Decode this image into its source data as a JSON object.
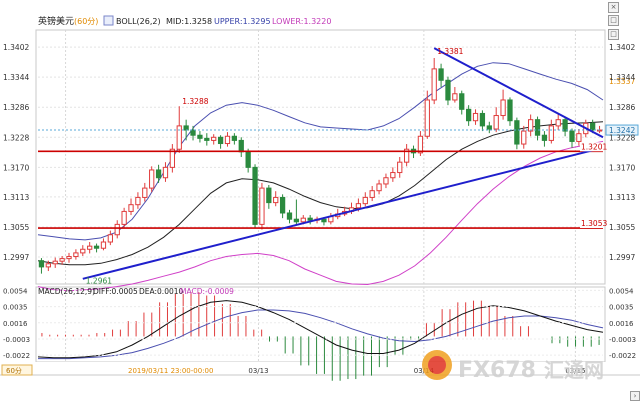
{
  "header": {
    "symbol": "英镑美元",
    "period": "(60分)",
    "boll_label": "BOLL(26,2)",
    "mid": "MID:1.3258",
    "upper": "UPPER:1.3295",
    "lower": "LOWER:1.3220"
  },
  "macd_header": {
    "label": "MACD(26,12,9)",
    "diff": "DIFF:0.0005",
    "dea": "DEA:0.0010",
    "macd": "MACD:-0.0009"
  },
  "footer": {
    "period_badge": "60分",
    "cursor_time": "2019/03/11 23:00-00:00",
    "watermark_text": "FX678",
    "watermark_cn": "汇通网"
  },
  "colors": {
    "up": "#e03c3c",
    "down": "#2b8a3e",
    "boll_upper": "#4a4fb0",
    "boll_mid": "#222222",
    "boll_lower": "#d040c8",
    "trendline": "#1f1fcc",
    "hline": "#cc0000"
  },
  "chart_data": [
    {
      "type": "candlestick",
      "title": "英镑美元 60分",
      "y_ticks": [
        "1.3402",
        "1.3344",
        "1.3286",
        "1.3228",
        "1.3170",
        "1.3113",
        "1.3055",
        "1.2997"
      ],
      "ylim": [
        1.2945,
        1.3435
      ],
      "x_labels": [
        "03/13",
        "03/14",
        "03/15"
      ],
      "current_price": "1.3242",
      "price_labels": [
        "1.3381",
        "1.3288",
        "1.2961",
        "1.3337",
        "1.3201",
        "1.3053"
      ],
      "horizontal_levels": [
        1.3201,
        1.3053
      ],
      "candles": [
        [
          1.299,
          1.2978,
          1.2995,
          1.2965
        ],
        [
          1.2978,
          1.2984,
          1.299,
          1.297
        ],
        [
          1.2984,
          1.2989,
          1.2996,
          1.2976
        ],
        [
          1.2989,
          1.2994,
          1.2999,
          1.2982
        ],
        [
          1.2994,
          1.2998,
          1.3005,
          1.2986
        ],
        [
          1.2998,
          1.3005,
          1.3012,
          1.2992
        ],
        [
          1.3005,
          1.3012,
          1.302,
          1.2999
        ],
        [
          1.3012,
          1.3018,
          1.3026,
          1.3004
        ],
        [
          1.3018,
          1.3014,
          1.3023,
          1.3006
        ],
        [
          1.3014,
          1.3026,
          1.3033,
          1.301
        ],
        [
          1.3026,
          1.304,
          1.3048,
          1.302
        ],
        [
          1.304,
          1.306,
          1.3068,
          1.3033
        ],
        [
          1.306,
          1.3085,
          1.3092,
          1.3052
        ],
        [
          1.3085,
          1.3098,
          1.311,
          1.3078
        ],
        [
          1.3098,
          1.3112,
          1.3122,
          1.309
        ],
        [
          1.3112,
          1.313,
          1.314,
          1.3104
        ],
        [
          1.313,
          1.3165,
          1.3172,
          1.3122
        ],
        [
          1.3165,
          1.315,
          1.3175,
          1.314
        ],
        [
          1.315,
          1.317,
          1.318,
          1.3142
        ],
        [
          1.317,
          1.3205,
          1.3215,
          1.316
        ],
        [
          1.3205,
          1.325,
          1.3288,
          1.3198
        ],
        [
          1.325,
          1.3242,
          1.3262,
          1.3222
        ],
        [
          1.3242,
          1.3232,
          1.325,
          1.3222
        ],
        [
          1.3232,
          1.3226,
          1.324,
          1.3218
        ],
        [
          1.3226,
          1.3222,
          1.3236,
          1.3212
        ],
        [
          1.3222,
          1.3228,
          1.3234,
          1.3214
        ],
        [
          1.3228,
          1.3216,
          1.3232,
          1.3206
        ],
        [
          1.3216,
          1.323,
          1.3238,
          1.321
        ],
        [
          1.323,
          1.3222,
          1.3236,
          1.3214
        ],
        [
          1.3222,
          1.32,
          1.3228,
          1.319
        ],
        [
          1.32,
          1.317,
          1.3206,
          1.316
        ],
        [
          1.317,
          1.306,
          1.3176,
          1.3052
        ],
        [
          1.306,
          1.313,
          1.314,
          1.305
        ],
        [
          1.313,
          1.3102,
          1.3136,
          1.309
        ],
        [
          1.3102,
          1.3112,
          1.3124,
          1.3095
        ],
        [
          1.3112,
          1.3082,
          1.3118,
          1.3072
        ],
        [
          1.3082,
          1.307,
          1.3088,
          1.3062
        ],
        [
          1.307,
          1.3065,
          1.3108,
          1.3058
        ],
        [
          1.3065,
          1.3072,
          1.3078,
          1.306
        ],
        [
          1.3072,
          1.3068,
          1.3078,
          1.306
        ],
        [
          1.3068,
          1.307,
          1.3075,
          1.3062
        ],
        [
          1.307,
          1.3065,
          1.3074,
          1.3058
        ],
        [
          1.3065,
          1.3075,
          1.3082,
          1.306
        ],
        [
          1.3075,
          1.308,
          1.309,
          1.307
        ],
        [
          1.308,
          1.3085,
          1.3094,
          1.3076
        ],
        [
          1.3085,
          1.3092,
          1.3102,
          1.308
        ],
        [
          1.3092,
          1.31,
          1.311,
          1.3085
        ],
        [
          1.31,
          1.3112,
          1.3122,
          1.3095
        ],
        [
          1.3112,
          1.3125,
          1.3134,
          1.3105
        ],
        [
          1.3125,
          1.3138,
          1.3146,
          1.3118
        ],
        [
          1.3138,
          1.315,
          1.3158,
          1.313
        ],
        [
          1.315,
          1.316,
          1.317,
          1.3142
        ],
        [
          1.316,
          1.318,
          1.319,
          1.315
        ],
        [
          1.318,
          1.3205,
          1.3215,
          1.3172
        ],
        [
          1.3205,
          1.3198,
          1.3212,
          1.3188
        ],
        [
          1.3198,
          1.323,
          1.324,
          1.3192
        ],
        [
          1.323,
          1.33,
          1.3318,
          1.3225
        ],
        [
          1.33,
          1.336,
          1.3381,
          1.3292
        ],
        [
          1.336,
          1.3338,
          1.337,
          1.3325
        ],
        [
          1.3338,
          1.33,
          1.3345,
          1.329
        ],
        [
          1.33,
          1.3312,
          1.3325,
          1.3295
        ],
        [
          1.3312,
          1.3282,
          1.3318,
          1.3272
        ],
        [
          1.3282,
          1.326,
          1.329,
          1.325
        ],
        [
          1.326,
          1.3274,
          1.3282,
          1.3252
        ],
        [
          1.3274,
          1.325,
          1.328,
          1.324
        ],
        [
          1.325,
          1.3244,
          1.3258,
          1.3236
        ],
        [
          1.3244,
          1.327,
          1.3286,
          1.3238
        ],
        [
          1.327,
          1.33,
          1.332,
          1.3262
        ],
        [
          1.33,
          1.326,
          1.3305,
          1.325
        ],
        [
          1.326,
          1.3215,
          1.3266,
          1.3205
        ],
        [
          1.3215,
          1.324,
          1.325,
          1.3206
        ],
        [
          1.324,
          1.3262,
          1.3272,
          1.323
        ],
        [
          1.3262,
          1.3232,
          1.3268,
          1.3222
        ],
        [
          1.3232,
          1.3222,
          1.324,
          1.321
        ],
        [
          1.3222,
          1.325,
          1.3262,
          1.3216
        ],
        [
          1.325,
          1.3262,
          1.3272,
          1.3242
        ],
        [
          1.3262,
          1.324,
          1.3268,
          1.323
        ],
        [
          1.324,
          1.322,
          1.3245,
          1.3208
        ],
        [
          1.322,
          1.3235,
          1.3244,
          1.3212
        ],
        [
          1.3235,
          1.3255,
          1.3262,
          1.3228
        ],
        [
          1.3255,
          1.3242,
          1.3262,
          1.3236
        ],
        [
          1.3242,
          1.3242,
          1.325,
          1.3236
        ]
      ],
      "boll_upper": [
        1.304,
        1.3036,
        1.3032,
        1.303,
        1.3034,
        1.3045,
        1.307,
        1.311,
        1.316,
        1.321,
        1.325,
        1.3275,
        1.329,
        1.3295,
        1.329,
        1.328,
        1.3268,
        1.3256,
        1.3248,
        1.3246,
        1.3244,
        1.3242,
        1.325,
        1.3264,
        1.3286,
        1.331,
        1.333,
        1.335,
        1.3365,
        1.3372,
        1.337,
        1.336,
        1.335,
        1.334,
        1.3332,
        1.332,
        1.33
      ],
      "boll_mid": [
        1.299,
        1.2985,
        1.2982,
        1.2982,
        1.2985,
        1.2992,
        1.3002,
        1.3016,
        1.3035,
        1.306,
        1.309,
        1.312,
        1.314,
        1.3148,
        1.3146,
        1.314,
        1.3128,
        1.3114,
        1.3102,
        1.3094,
        1.309,
        1.3092,
        1.31,
        1.3115,
        1.3135,
        1.316,
        1.3185,
        1.3205,
        1.322,
        1.3232,
        1.324,
        1.3246,
        1.325,
        1.3253,
        1.3255,
        1.3256,
        1.3258
      ],
      "boll_lower": [
        1.294,
        1.2934,
        1.2932,
        1.2934,
        1.2936,
        1.294,
        1.2945,
        1.2952,
        1.296,
        1.2968,
        1.2978,
        1.299,
        1.2998,
        1.3002,
        1.3004,
        1.3,
        1.299,
        1.2974,
        1.2962,
        1.295,
        1.2945,
        1.2944,
        1.295,
        1.2962,
        1.298,
        1.3005,
        1.3035,
        1.3068,
        1.31,
        1.3128,
        1.3152,
        1.3172,
        1.3188,
        1.32,
        1.3208,
        1.3214,
        1.322
      ],
      "trendlines": [
        {
          "from_index": 6,
          "from_price": 1.2955,
          "to_index": 82,
          "to_price": 1.3208
        },
        {
          "from_index": 57,
          "from_price": 1.34,
          "to_index": 82,
          "to_price": 1.3228
        }
      ]
    },
    {
      "type": "macd",
      "y_ticks": [
        "0.0054",
        "0.0035",
        "0.0016",
        "-0.0003",
        "-0.0022"
      ],
      "ylim": [
        -0.003,
        0.0058
      ],
      "diff": [
        -0.0024,
        -0.0025,
        -0.0025,
        -0.0024,
        -0.0022,
        -0.0018,
        -0.001,
        0.0,
        0.0012,
        0.0024,
        0.0034,
        0.004,
        0.0042,
        0.004,
        0.0035,
        0.0028,
        0.002,
        0.001,
        0.0,
        -0.001,
        -0.0016,
        -0.002,
        -0.002,
        -0.0016,
        -0.0008,
        0.0004,
        0.0016,
        0.0026,
        0.0033,
        0.0036,
        0.0034,
        0.003,
        0.0024,
        0.0018,
        0.0013,
        0.0008,
        0.0005
      ],
      "dea": [
        -0.0026,
        -0.0026,
        -0.0026,
        -0.0025,
        -0.0024,
        -0.0022,
        -0.0019,
        -0.0014,
        -0.0008,
        -0.0001,
        0.0008,
        0.0016,
        0.0023,
        0.0028,
        0.0031,
        0.0031,
        0.003,
        0.0027,
        0.0022,
        0.0016,
        0.0009,
        0.0003,
        -0.0002,
        -0.0005,
        -0.0006,
        -0.0004,
        0.0,
        0.0006,
        0.0012,
        0.0018,
        0.0022,
        0.0024,
        0.0024,
        0.0022,
        0.0019,
        0.0014,
        0.001
      ]
    }
  ]
}
